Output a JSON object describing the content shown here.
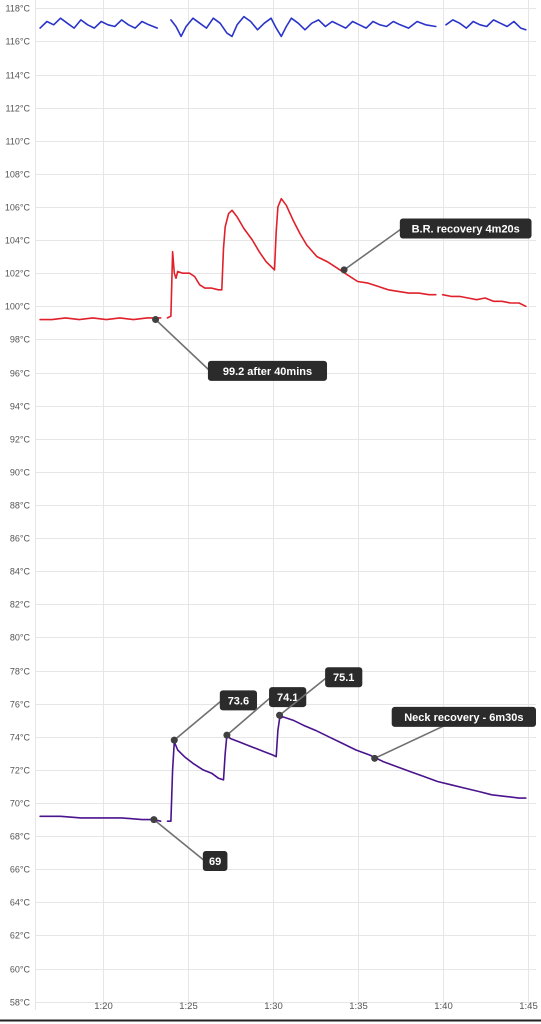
{
  "chart_data": {
    "type": "line",
    "title": "",
    "xlabel": "",
    "ylabel": "",
    "xlim": [
      76.0,
      105.5
    ],
    "ylim": [
      57.5,
      118.5
    ],
    "x_unit": "minutes",
    "grid": true,
    "legend": "none",
    "y_ticks": [
      "58°C",
      "60°C",
      "62°C",
      "64°C",
      "66°C",
      "68°C",
      "70°C",
      "72°C",
      "74°C",
      "76°C",
      "78°C",
      "80°C",
      "82°C",
      "84°C",
      "86°C",
      "88°C",
      "90°C",
      "92°C",
      "94°C",
      "96°C",
      "98°C",
      "100°C",
      "102°C",
      "104°C",
      "106°C",
      "108°C",
      "110°C",
      "112°C",
      "114°C",
      "116°C",
      "118°C"
    ],
    "y_tick_values": [
      58,
      60,
      62,
      64,
      66,
      68,
      70,
      72,
      74,
      76,
      78,
      80,
      82,
      84,
      86,
      88,
      90,
      92,
      94,
      96,
      98,
      100,
      102,
      104,
      106,
      108,
      110,
      112,
      114,
      116,
      118
    ],
    "x_ticks": [
      "1:20",
      "1:25",
      "1:30",
      "1:35",
      "1:40",
      "1:45"
    ],
    "x_tick_values": [
      80,
      85,
      90,
      95,
      100,
      105
    ],
    "series": [
      {
        "color": "#2a35c8",
        "segments": [
          [
            [
              76.3,
              116.8
            ],
            [
              76.7,
              117.2
            ],
            [
              77.1,
              117.0
            ],
            [
              77.5,
              117.4
            ],
            [
              77.9,
              117.1
            ],
            [
              78.3,
              116.8
            ],
            [
              78.7,
              117.3
            ],
            [
              79.1,
              117.0
            ],
            [
              79.5,
              116.8
            ],
            [
              79.9,
              117.2
            ],
            [
              80.3,
              117.0
            ],
            [
              80.7,
              116.9
            ],
            [
              81.1,
              117.3
            ],
            [
              81.5,
              117.0
            ],
            [
              81.9,
              116.8
            ],
            [
              82.3,
              117.2
            ],
            [
              82.7,
              117.0
            ],
            [
              83.2,
              116.8
            ]
          ],
          [
            [
              84.0,
              117.3
            ],
            [
              84.3,
              116.9
            ],
            [
              84.6,
              116.3
            ],
            [
              84.9,
              116.9
            ],
            [
              85.3,
              117.4
            ],
            [
              85.7,
              117.1
            ],
            [
              86.1,
              116.8
            ],
            [
              86.5,
              117.4
            ],
            [
              86.9,
              117.1
            ],
            [
              87.3,
              116.5
            ],
            [
              87.6,
              116.3
            ],
            [
              87.9,
              117.0
            ],
            [
              88.3,
              117.5
            ],
            [
              88.7,
              117.2
            ],
            [
              89.1,
              116.7
            ],
            [
              89.5,
              117.1
            ],
            [
              89.9,
              117.4
            ],
            [
              90.2,
              116.8
            ],
            [
              90.5,
              116.3
            ],
            [
              90.8,
              116.9
            ],
            [
              91.1,
              117.4
            ],
            [
              91.5,
              117.1
            ],
            [
              91.9,
              116.7
            ],
            [
              92.3,
              117.1
            ],
            [
              92.7,
              117.3
            ],
            [
              93.1,
              116.9
            ],
            [
              93.5,
              117.2
            ],
            [
              93.9,
              117.0
            ],
            [
              94.3,
              116.8
            ],
            [
              94.7,
              117.2
            ],
            [
              95.1,
              117.0
            ],
            [
              95.5,
              116.8
            ],
            [
              95.9,
              117.2
            ],
            [
              96.3,
              117.0
            ],
            [
              96.7,
              116.9
            ],
            [
              97.1,
              117.2
            ],
            [
              97.5,
              117.0
            ],
            [
              98.0,
              116.8
            ],
            [
              98.5,
              117.2
            ],
            [
              99.0,
              117.0
            ],
            [
              99.6,
              116.9
            ]
          ],
          [
            [
              100.2,
              117.0
            ],
            [
              100.6,
              117.3
            ],
            [
              101.0,
              117.1
            ],
            [
              101.4,
              116.8
            ],
            [
              101.8,
              117.2
            ],
            [
              102.2,
              117.0
            ],
            [
              102.6,
              116.9
            ],
            [
              103.0,
              117.3
            ],
            [
              103.4,
              117.1
            ],
            [
              103.8,
              116.9
            ],
            [
              104.2,
              117.2
            ],
            [
              104.6,
              116.8
            ],
            [
              104.9,
              116.7
            ]
          ]
        ]
      },
      {
        "color": "#e0202a",
        "segments": [
          [
            [
              76.3,
              99.2
            ],
            [
              77.0,
              99.2
            ],
            [
              77.8,
              99.3
            ],
            [
              78.6,
              99.2
            ],
            [
              79.4,
              99.3
            ],
            [
              80.2,
              99.2
            ],
            [
              81.0,
              99.3
            ],
            [
              81.8,
              99.2
            ],
            [
              82.6,
              99.3
            ],
            [
              83.4,
              99.3
            ]
          ],
          [
            [
              83.8,
              99.3
            ],
            [
              84.0,
              99.4
            ],
            [
              84.1,
              103.3
            ],
            [
              84.2,
              102.0
            ],
            [
              84.3,
              101.7
            ],
            [
              84.4,
              102.1
            ],
            [
              84.7,
              102.0
            ],
            [
              85.1,
              102.0
            ],
            [
              85.4,
              101.8
            ],
            [
              85.7,
              101.3
            ],
            [
              86.0,
              101.1
            ],
            [
              86.4,
              101.1
            ],
            [
              86.8,
              101.0
            ],
            [
              87.0,
              101.0
            ],
            [
              87.1,
              103.5
            ],
            [
              87.2,
              104.8
            ],
            [
              87.4,
              105.6
            ],
            [
              87.6,
              105.8
            ],
            [
              87.9,
              105.4
            ],
            [
              88.3,
              104.7
            ],
            [
              88.8,
              104.0
            ],
            [
              89.2,
              103.3
            ],
            [
              89.6,
              102.7
            ],
            [
              89.9,
              102.4
            ],
            [
              90.1,
              102.2
            ],
            [
              90.2,
              104.5
            ],
            [
              90.3,
              106.0
            ],
            [
              90.5,
              106.5
            ],
            [
              90.8,
              106.1
            ],
            [
              91.2,
              105.2
            ],
            [
              91.6,
              104.4
            ],
            [
              92.0,
              103.7
            ],
            [
              92.6,
              103.0
            ],
            [
              93.2,
              102.7
            ],
            [
              93.8,
              102.3
            ],
            [
              94.4,
              101.9
            ],
            [
              95.0,
              101.5
            ],
            [
              95.6,
              101.4
            ],
            [
              96.2,
              101.2
            ],
            [
              96.8,
              101.0
            ],
            [
              97.4,
              100.9
            ],
            [
              98.0,
              100.8
            ],
            [
              98.6,
              100.8
            ],
            [
              99.2,
              100.7
            ],
            [
              99.6,
              100.7
            ]
          ],
          [
            [
              100.0,
              100.7
            ],
            [
              100.5,
              100.6
            ],
            [
              101.0,
              100.6
            ],
            [
              101.5,
              100.5
            ],
            [
              102.0,
              100.4
            ],
            [
              102.5,
              100.5
            ],
            [
              103.0,
              100.3
            ],
            [
              103.5,
              100.3
            ],
            [
              104.0,
              100.2
            ],
            [
              104.5,
              100.2
            ],
            [
              104.9,
              100.0
            ]
          ]
        ]
      },
      {
        "color": "#4a148c",
        "segments": [
          [
            [
              76.3,
              69.2
            ],
            [
              77.5,
              69.2
            ],
            [
              78.7,
              69.1
            ],
            [
              79.9,
              69.1
            ],
            [
              81.1,
              69.1
            ],
            [
              82.3,
              69.0
            ],
            [
              83.0,
              69.0
            ],
            [
              83.4,
              68.9
            ]
          ],
          [
            [
              83.8,
              68.9
            ],
            [
              84.0,
              68.9
            ],
            [
              84.1,
              72.0
            ],
            [
              84.2,
              73.7
            ],
            [
              84.4,
              73.2
            ],
            [
              84.8,
              72.8
            ],
            [
              85.3,
              72.4
            ],
            [
              85.9,
              72.0
            ],
            [
              86.4,
              71.8
            ],
            [
              86.8,
              71.5
            ],
            [
              87.1,
              71.4
            ],
            [
              87.2,
              73.0
            ],
            [
              87.3,
              74.1
            ],
            [
              87.5,
              73.9
            ],
            [
              88.0,
              73.7
            ],
            [
              88.5,
              73.5
            ],
            [
              89.0,
              73.3
            ],
            [
              89.5,
              73.1
            ],
            [
              90.0,
              72.9
            ],
            [
              90.2,
              72.8
            ],
            [
              90.3,
              74.4
            ],
            [
              90.4,
              75.1
            ],
            [
              90.6,
              75.2
            ],
            [
              91.2,
              75.0
            ],
            [
              91.8,
              74.7
            ],
            [
              92.5,
              74.4
            ],
            [
              93.3,
              74.0
            ],
            [
              94.1,
              73.6
            ],
            [
              94.9,
              73.2
            ],
            [
              95.7,
              72.9
            ],
            [
              96.5,
              72.5
            ],
            [
              97.3,
              72.2
            ],
            [
              98.1,
              71.9
            ],
            [
              98.9,
              71.6
            ],
            [
              99.7,
              71.3
            ],
            [
              100.5,
              71.1
            ],
            [
              101.3,
              70.9
            ],
            [
              102.1,
              70.7
            ],
            [
              102.9,
              70.5
            ],
            [
              103.7,
              70.4
            ],
            [
              104.5,
              70.3
            ],
            [
              104.9,
              70.3
            ]
          ]
        ]
      }
    ],
    "annotations": [
      {
        "text": "99.2 after 40mins",
        "point": [
          83.1,
          99.2
        ],
        "anchor": [
          86.3,
          96.1
        ]
      },
      {
        "text": "B.R. recovery 4m20s",
        "point": [
          94.2,
          102.2
        ],
        "anchor": [
          97.6,
          104.7
        ]
      },
      {
        "text": "73.6",
        "point": [
          84.2,
          73.8
        ],
        "anchor": [
          87.0,
          76.2
        ]
      },
      {
        "text": "74.1",
        "point": [
          87.3,
          74.1
        ],
        "anchor": [
          89.9,
          76.4
        ]
      },
      {
        "text": "75.1",
        "point": [
          90.4,
          75.3
        ],
        "anchor": [
          93.2,
          77.6
        ]
      },
      {
        "text": "Neck recovery - 6m30s",
        "point": [
          96.0,
          72.7
        ],
        "anchor": [
          101.2,
          75.2
        ]
      },
      {
        "text": "69",
        "point": [
          83.0,
          69.0
        ],
        "anchor": [
          86.0,
          66.5
        ]
      }
    ]
  }
}
